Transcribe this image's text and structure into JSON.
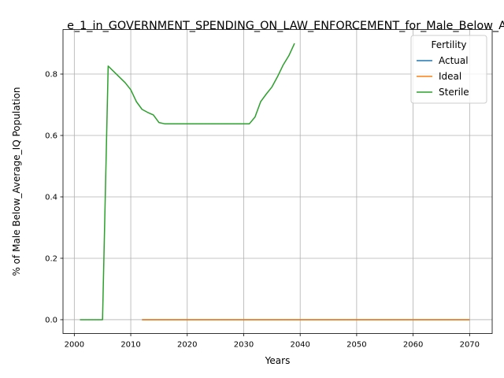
{
  "chart_data": {
    "type": "line",
    "title": "e_1_in_GOVERNMENT_SPENDING_ON_LAW_ENFORCEMENT_for_Male_Below_A",
    "xlabel": "Years",
    "ylabel": "% of Male Below_Average_IQ Population",
    "xlim": [
      1998,
      2074
    ],
    "ylim": [
      -0.045,
      0.945
    ],
    "xticks": [
      2000,
      2010,
      2020,
      2030,
      2040,
      2050,
      2060,
      2070
    ],
    "yticks": [
      0.0,
      0.2,
      0.4,
      0.6,
      0.8
    ],
    "xtick_labels": [
      "2000",
      "2010",
      "2020",
      "2030",
      "2040",
      "2050",
      "2060",
      "2070"
    ],
    "ytick_labels": [
      "0.0",
      "0.2",
      "0.4",
      "0.6",
      "0.8"
    ],
    "grid": true,
    "legend": {
      "title": "Fertility",
      "placement": "top-right"
    },
    "series": [
      {
        "name": "Actual",
        "color": "#1f77b4",
        "x": [
          2012,
          2070
        ],
        "y": [
          0.0,
          0.0
        ]
      },
      {
        "name": "Ideal",
        "color": "#ff7f0e",
        "x": [
          2012,
          2070
        ],
        "y": [
          0.0,
          0.0
        ]
      },
      {
        "name": "Sterile",
        "color": "#2ca02c",
        "x": [
          2001,
          2002,
          2003,
          2004,
          2005,
          2006,
          2007,
          2008,
          2009,
          2010,
          2011,
          2012,
          2013,
          2014,
          2015,
          2016,
          2017,
          2018,
          2019,
          2020,
          2021,
          2022,
          2023,
          2024,
          2025,
          2026,
          2027,
          2028,
          2029,
          2030,
          2031,
          2032,
          2033,
          2034,
          2035,
          2036,
          2037,
          2038,
          2039
        ],
        "y": [
          0.0,
          0.0,
          0.0,
          0.0,
          0.0,
          0.826,
          0.808,
          0.79,
          0.772,
          0.749,
          0.71,
          0.685,
          0.675,
          0.667,
          0.642,
          0.638,
          0.638,
          0.638,
          0.638,
          0.638,
          0.638,
          0.638,
          0.638,
          0.638,
          0.638,
          0.638,
          0.638,
          0.638,
          0.638,
          0.638,
          0.638,
          0.66,
          0.71,
          0.735,
          0.758,
          0.792,
          0.83,
          0.86,
          0.9
        ]
      }
    ]
  }
}
